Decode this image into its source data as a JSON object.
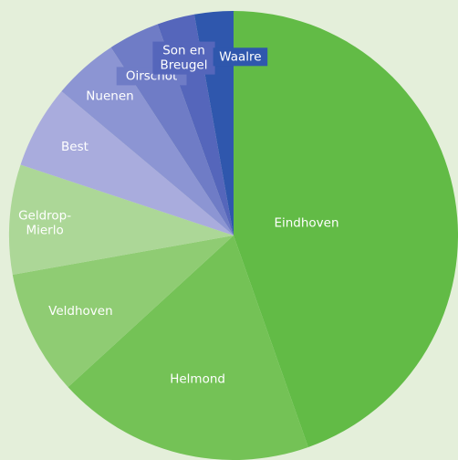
{
  "chart_data": {
    "type": "pie",
    "title": "",
    "slices": [
      {
        "label": "Eindhoven",
        "value": 44.6,
        "color": "#62bb46"
      },
      {
        "label": "Helmond",
        "value": 18.6,
        "color": "#74c256"
      },
      {
        "label": "Veldhoven",
        "value": 9.0,
        "color": "#8fcc73"
      },
      {
        "label": "Geldrop-\nMierlo",
        "value": 7.9,
        "color": "#acd797"
      },
      {
        "label": "Best",
        "value": 6.0,
        "color": "#a9acdd"
      },
      {
        "label": "Nuenen",
        "value": 4.7,
        "color": "#8c95d3"
      },
      {
        "label": "Oirschot",
        "value": 3.7,
        "color": "#6f7cc6"
      },
      {
        "label": "Son en\nBreugel",
        "value": 2.7,
        "color": "#5566bb"
      },
      {
        "label": "Waalre",
        "value": 2.8,
        "color": "#2f57ad"
      }
    ],
    "start": "12 o'clock",
    "direction": "clockwise",
    "legend": "none",
    "label_placement": "inside"
  }
}
